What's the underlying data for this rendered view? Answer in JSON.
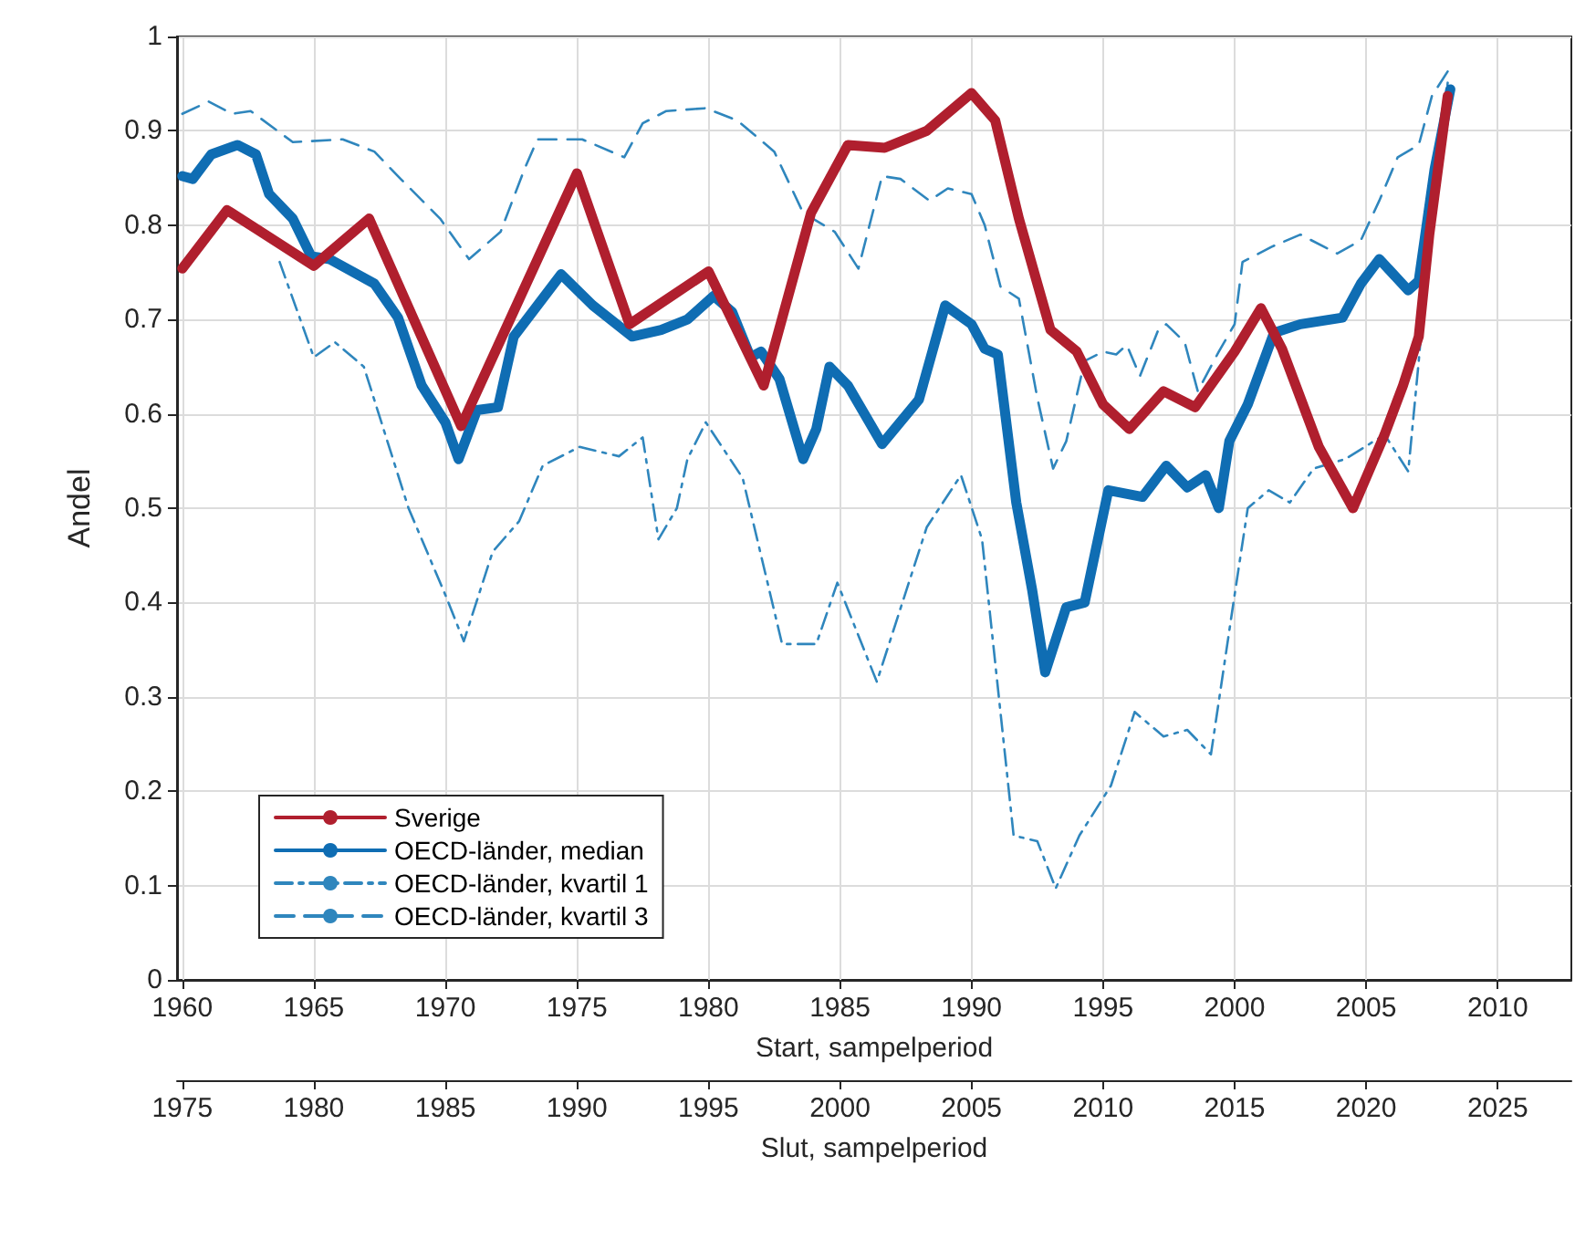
{
  "chart_data": {
    "type": "line",
    "ylabel": "Andel",
    "xlabel": "Start, sampelperiod",
    "x2label": "Slut, sampelperiod",
    "xlim": [
      1959.8,
      2012.8
    ],
    "xticks": [
      1960,
      1965,
      1970,
      1975,
      1980,
      1985,
      1990,
      1995,
      2000,
      2005,
      2010
    ],
    "x2lim": [
      1974.8,
      2027.8
    ],
    "x2ticks": [
      1975,
      1980,
      1985,
      1990,
      1995,
      2000,
      2005,
      2010,
      2015,
      2020,
      2025
    ],
    "ylim": [
      0,
      1
    ],
    "yticks": [
      0,
      0.1,
      0.2,
      0.3,
      0.4,
      0.5,
      0.6,
      0.7,
      0.8,
      0.9,
      1
    ],
    "grid": true,
    "legend": "bottom left",
    "marker": "none",
    "series": [
      {
        "name": "Sverige",
        "color": "#b01f2e",
        "line_style": "solid",
        "x": [
          1960,
          1961.7,
          1965,
          1967.1,
          1970.6,
          1975,
          1977,
          1980,
          1982.1,
          1983.9,
          1985.3,
          1986.7,
          1988.3,
          1990,
          1990.9,
          1991.8,
          1993,
          1994,
          1995,
          1996,
          1997.3,
          1998.5,
          2000,
          2001,
          2001.8,
          2003.2,
          2004.5,
          2005.7,
          2006.4,
          2007,
          2007.4,
          2008.1
        ],
        "values": [
          0.754,
          0.816,
          0.757,
          0.807,
          0.587,
          0.855,
          0.695,
          0.751,
          0.63,
          0.813,
          0.885,
          0.882,
          0.9,
          0.94,
          0.911,
          0.807,
          0.689,
          0.666,
          0.61,
          0.584,
          0.624,
          0.607,
          0.666,
          0.712,
          0.669,
          0.565,
          0.5,
          0.578,
          0.63,
          0.682,
          0.79,
          0.937
        ]
      },
      {
        "name": "OECD-länder, median",
        "color": "#0f6db3",
        "line_style": "solid",
        "x": [
          1960,
          1960.4,
          1961.1,
          1962.1,
          1962.8,
          1963.3,
          1964.2,
          1964.9,
          1965.6,
          1967.3,
          1968.2,
          1969.1,
          1970,
          1970.5,
          1971.2,
          1972,
          1972.6,
          1974.4,
          1975.6,
          1977.1,
          1978.2,
          1979.2,
          1980.2,
          1980.9,
          1981.6,
          1982,
          1982.7,
          1983.6,
          1984.1,
          1984.6,
          1985.3,
          1986.6,
          1988,
          1989,
          1990,
          1990.5,
          1991,
          1991.7,
          1992.3,
          1992.8,
          1993.6,
          1994.3,
          1995.2,
          1996.5,
          1997.4,
          1998.2,
          1998.9,
          1999.4,
          1999.8,
          2000.5,
          2001.5,
          2002.5,
          2004.1,
          2004.8,
          2005.5,
          2006.6,
          2007,
          2007.6,
          2008.2
        ],
        "values": [
          0.852,
          0.849,
          0.875,
          0.885,
          0.875,
          0.833,
          0.807,
          0.767,
          0.764,
          0.738,
          0.702,
          0.63,
          0.591,
          0.552,
          0.604,
          0.607,
          0.682,
          0.748,
          0.715,
          0.682,
          0.689,
          0.7,
          0.725,
          0.708,
          0.66,
          0.666,
          0.637,
          0.552,
          0.584,
          0.65,
          0.63,
          0.568,
          0.615,
          0.715,
          0.695,
          0.669,
          0.663,
          0.506,
          0.414,
          0.326,
          0.395,
          0.4,
          0.519,
          0.512,
          0.545,
          0.522,
          0.535,
          0.5,
          0.571,
          0.61,
          0.686,
          0.695,
          0.702,
          0.738,
          0.764,
          0.731,
          0.741,
          0.859,
          0.944
        ]
      },
      {
        "name": "OECD-länder, kvartil 1",
        "color": "#2f86bd",
        "line_style": "dashdot",
        "x": [
          1963.7,
          1965,
          1965.8,
          1966.9,
          1968.6,
          1970,
          1970.7,
          1971.8,
          1972.8,
          1973.7,
          1975.1,
          1976.6,
          1977.5,
          1978.1,
          1978.8,
          1979.2,
          1979.9,
          1981.3,
          1982.8,
          1984.1,
          1984.9,
          1986.4,
          1988.3,
          1989.6,
          1990.4,
          1991.6,
          1992.5,
          1993.2,
          1994.1,
          1995.3,
          1996.2,
          1997.3,
          1998.2,
          1999.1,
          2000,
          2000.5,
          2001.3,
          2002.1,
          2003,
          2004.2,
          2005.7,
          2006.6,
          2007,
          2007.4,
          2008.1
        ],
        "values": [
          0.761,
          0.66,
          0.676,
          0.65,
          0.5,
          0.408,
          0.359,
          0.454,
          0.486,
          0.545,
          0.565,
          0.555,
          0.575,
          0.467,
          0.5,
          0.552,
          0.591,
          0.532,
          0.356,
          0.356,
          0.421,
          0.316,
          0.48,
          0.535,
          0.467,
          0.153,
          0.147,
          0.097,
          0.153,
          0.206,
          0.284,
          0.258,
          0.265,
          0.239,
          0.408,
          0.5,
          0.519,
          0.506,
          0.542,
          0.552,
          0.578,
          0.539,
          0.656,
          0.79,
          0.951
        ]
      },
      {
        "name": "OECD-länder, kvartil 3",
        "color": "#2f86bd",
        "line_style": "dashed",
        "x": [
          1960,
          1961,
          1961.9,
          1962.6,
          1964.2,
          1966.1,
          1967.3,
          1968.3,
          1969.8,
          1970.9,
          1972.1,
          1973,
          1973.5,
          1975.2,
          1976.8,
          1977.5,
          1978.4,
          1979.9,
          1981.1,
          1982.5,
          1983.6,
          1984.8,
          1985.7,
          1986.6,
          1987.3,
          1988.4,
          1989.1,
          1990,
          1990.5,
          1991.1,
          1991.8,
          1992.5,
          1993.1,
          1993.6,
          1994.3,
          1995,
          1995.5,
          1995.9,
          1996.4,
          1997.1,
          1997.4,
          1998.1,
          1998.6,
          1999.4,
          2000,
          2000.3,
          2001.4,
          2002.5,
          2003.9,
          2004.8,
          2005.5,
          2006.2,
          2007,
          2007.5,
          2008.1
        ],
        "values": [
          0.918,
          0.931,
          0.918,
          0.921,
          0.888,
          0.891,
          0.878,
          0.849,
          0.807,
          0.764,
          0.793,
          0.859,
          0.891,
          0.891,
          0.872,
          0.908,
          0.921,
          0.924,
          0.911,
          0.878,
          0.813,
          0.793,
          0.754,
          0.852,
          0.849,
          0.826,
          0.839,
          0.833,
          0.8,
          0.735,
          0.722,
          0.617,
          0.542,
          0.571,
          0.656,
          0.666,
          0.663,
          0.673,
          0.64,
          0.689,
          0.695,
          0.676,
          0.624,
          0.666,
          0.695,
          0.761,
          0.777,
          0.79,
          0.77,
          0.784,
          0.826,
          0.872,
          0.885,
          0.937,
          0.963
        ]
      }
    ]
  }
}
